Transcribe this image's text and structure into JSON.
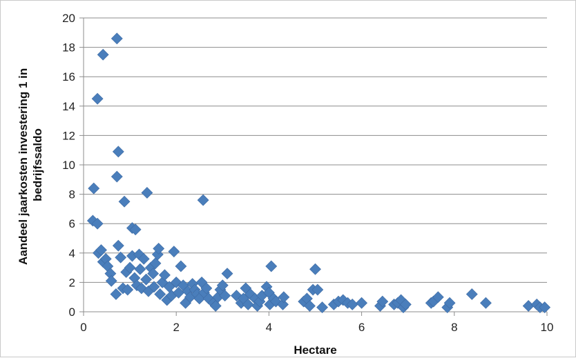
{
  "chart_data": {
    "type": "scatter",
    "xlabel": "Hectare",
    "ylabel_lines": [
      "Aandeel jaarkosten investering 1 in",
      "bedrijfssaldo"
    ],
    "xlim": [
      0,
      10
    ],
    "ylim": [
      0,
      20
    ],
    "xticks": [
      0,
      2,
      4,
      6,
      8,
      10
    ],
    "yticks": [
      0,
      2,
      4,
      6,
      8,
      10,
      12,
      14,
      16,
      18,
      20
    ],
    "grid": "horizontal",
    "legend": "none",
    "marker": "diamond",
    "color": "#4a7ebb",
    "points": [
      [
        0.2,
        6.2
      ],
      [
        0.3,
        6.0
      ],
      [
        0.22,
        8.4
      ],
      [
        0.3,
        14.5
      ],
      [
        0.42,
        17.5
      ],
      [
        0.72,
        18.6
      ],
      [
        0.75,
        10.9
      ],
      [
        0.72,
        9.2
      ],
      [
        0.88,
        7.5
      ],
      [
        1.37,
        8.1
      ],
      [
        2.58,
        7.6
      ],
      [
        0.32,
        4.0
      ],
      [
        0.38,
        4.2
      ],
      [
        0.42,
        3.4
      ],
      [
        0.48,
        3.6
      ],
      [
        0.52,
        3.1
      ],
      [
        0.58,
        2.6
      ],
      [
        0.6,
        2.1
      ],
      [
        0.7,
        1.2
      ],
      [
        0.75,
        4.5
      ],
      [
        0.8,
        3.7
      ],
      [
        0.85,
        1.6
      ],
      [
        0.92,
        2.7
      ],
      [
        0.95,
        1.5
      ],
      [
        1.0,
        3.0
      ],
      [
        1.05,
        5.7
      ],
      [
        1.12,
        5.6
      ],
      [
        1.05,
        3.8
      ],
      [
        1.1,
        2.3
      ],
      [
        1.15,
        1.8
      ],
      [
        1.2,
        3.9
      ],
      [
        1.22,
        2.9
      ],
      [
        1.25,
        1.6
      ],
      [
        1.3,
        3.6
      ],
      [
        1.35,
        2.2
      ],
      [
        1.4,
        1.4
      ],
      [
        1.45,
        3.0
      ],
      [
        1.5,
        2.6
      ],
      [
        1.52,
        1.7
      ],
      [
        1.55,
        3.3
      ],
      [
        1.6,
        3.9
      ],
      [
        1.62,
        4.3
      ],
      [
        1.65,
        1.2
      ],
      [
        1.7,
        2.0
      ],
      [
        1.75,
        2.5
      ],
      [
        1.8,
        0.8
      ],
      [
        1.85,
        1.7
      ],
      [
        1.9,
        1.1
      ],
      [
        1.95,
        4.1
      ],
      [
        2.0,
        2.0
      ],
      [
        2.05,
        1.3
      ],
      [
        2.1,
        3.1
      ],
      [
        2.15,
        1.8
      ],
      [
        2.2,
        0.6
      ],
      [
        2.25,
        1.4
      ],
      [
        2.3,
        1.0
      ],
      [
        2.35,
        1.9
      ],
      [
        2.4,
        1.5
      ],
      [
        2.45,
        1.2
      ],
      [
        2.5,
        0.9
      ],
      [
        2.55,
        2.0
      ],
      [
        2.6,
        1.3
      ],
      [
        2.65,
        1.6
      ],
      [
        2.7,
        0.9
      ],
      [
        2.8,
        0.6
      ],
      [
        2.85,
        0.4
      ],
      [
        2.9,
        1.0
      ],
      [
        2.95,
        1.5
      ],
      [
        3.0,
        1.8
      ],
      [
        3.05,
        1.1
      ],
      [
        3.1,
        2.6
      ],
      [
        3.3,
        1.1
      ],
      [
        3.4,
        0.6
      ],
      [
        3.45,
        0.9
      ],
      [
        3.5,
        1.6
      ],
      [
        3.55,
        0.5
      ],
      [
        3.6,
        1.2
      ],
      [
        3.7,
        0.9
      ],
      [
        3.75,
        0.4
      ],
      [
        3.8,
        0.7
      ],
      [
        3.85,
        1.1
      ],
      [
        3.95,
        1.7
      ],
      [
        4.0,
        1.3
      ],
      [
        4.02,
        0.5
      ],
      [
        4.05,
        3.1
      ],
      [
        4.1,
        0.9
      ],
      [
        4.15,
        0.7
      ],
      [
        4.3,
        0.5
      ],
      [
        4.32,
        1.0
      ],
      [
        4.75,
        0.7
      ],
      [
        4.82,
        0.9
      ],
      [
        4.88,
        0.4
      ],
      [
        4.95,
        1.5
      ],
      [
        5.0,
        2.9
      ],
      [
        5.05,
        1.5
      ],
      [
        5.15,
        0.3
      ],
      [
        5.4,
        0.5
      ],
      [
        5.5,
        0.7
      ],
      [
        5.6,
        0.8
      ],
      [
        5.7,
        0.6
      ],
      [
        5.8,
        0.5
      ],
      [
        6.0,
        0.6
      ],
      [
        6.4,
        0.4
      ],
      [
        6.45,
        0.7
      ],
      [
        6.7,
        0.5
      ],
      [
        6.78,
        0.6
      ],
      [
        6.85,
        0.8
      ],
      [
        6.9,
        0.3
      ],
      [
        6.95,
        0.5
      ],
      [
        7.5,
        0.6
      ],
      [
        7.55,
        0.7
      ],
      [
        7.65,
        1.0
      ],
      [
        7.85,
        0.3
      ],
      [
        7.9,
        0.6
      ],
      [
        8.38,
        1.2
      ],
      [
        8.68,
        0.6
      ],
      [
        9.6,
        0.4
      ],
      [
        9.78,
        0.5
      ],
      [
        9.85,
        0.3
      ],
      [
        9.95,
        0.3
      ]
    ]
  }
}
